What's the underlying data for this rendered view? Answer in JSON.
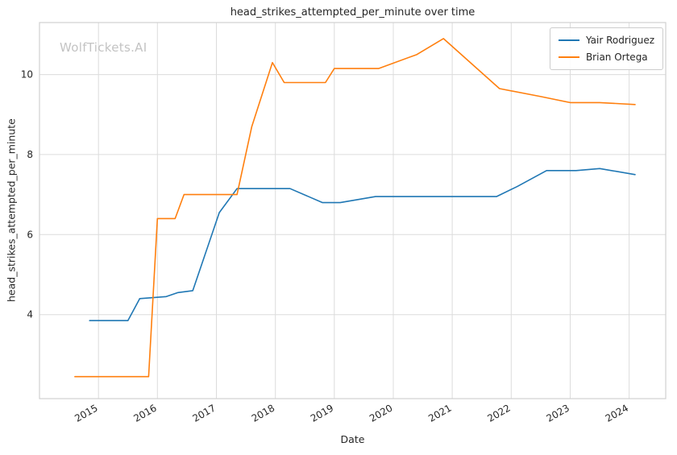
{
  "watermark": "WolfTickets.AI",
  "chart_data": {
    "type": "line",
    "title": "head_strikes_attempted_per_minute over time",
    "xlabel": "Date",
    "ylabel": "head_strikes_attempted_per_minute",
    "xlim": [
      2014.0,
      2024.62
    ],
    "ylim": [
      1.9,
      11.3
    ],
    "x_ticks": [
      2015,
      2016,
      2017,
      2018,
      2019,
      2020,
      2021,
      2022,
      2023,
      2024
    ],
    "y_ticks": [
      4,
      6,
      8,
      10
    ],
    "grid": true,
    "legend_position": "top-right",
    "colors": {
      "grid": "#dcdcdc",
      "border": "#d0d0d0",
      "tick_text": "#262626"
    },
    "series": [
      {
        "name": "Yair Rodriguez",
        "color": "#1f77b4",
        "points": [
          [
            2014.85,
            3.85
          ],
          [
            2015.5,
            3.85
          ],
          [
            2015.7,
            4.4
          ],
          [
            2016.15,
            4.45
          ],
          [
            2016.35,
            4.55
          ],
          [
            2016.6,
            4.6
          ],
          [
            2017.05,
            6.55
          ],
          [
            2017.35,
            7.15
          ],
          [
            2018.25,
            7.15
          ],
          [
            2018.8,
            6.8
          ],
          [
            2019.1,
            6.8
          ],
          [
            2019.7,
            6.95
          ],
          [
            2021.75,
            6.95
          ],
          [
            2022.1,
            7.2
          ],
          [
            2022.6,
            7.6
          ],
          [
            2023.1,
            7.6
          ],
          [
            2023.5,
            7.65
          ],
          [
            2024.1,
            7.5
          ]
        ]
      },
      {
        "name": "Brian Ortega",
        "color": "#ff7f0e",
        "points": [
          [
            2014.6,
            2.45
          ],
          [
            2015.85,
            2.45
          ],
          [
            2016.0,
            6.4
          ],
          [
            2016.3,
            6.4
          ],
          [
            2016.45,
            7.0
          ],
          [
            2017.35,
            7.0
          ],
          [
            2017.6,
            8.7
          ],
          [
            2017.95,
            10.3
          ],
          [
            2018.15,
            9.8
          ],
          [
            2018.85,
            9.8
          ],
          [
            2019.0,
            10.15
          ],
          [
            2019.75,
            10.15
          ],
          [
            2020.4,
            10.5
          ],
          [
            2020.85,
            10.9
          ],
          [
            2021.8,
            9.65
          ],
          [
            2022.5,
            9.45
          ],
          [
            2023.0,
            9.3
          ],
          [
            2023.5,
            9.3
          ],
          [
            2024.1,
            9.25
          ]
        ]
      }
    ]
  }
}
